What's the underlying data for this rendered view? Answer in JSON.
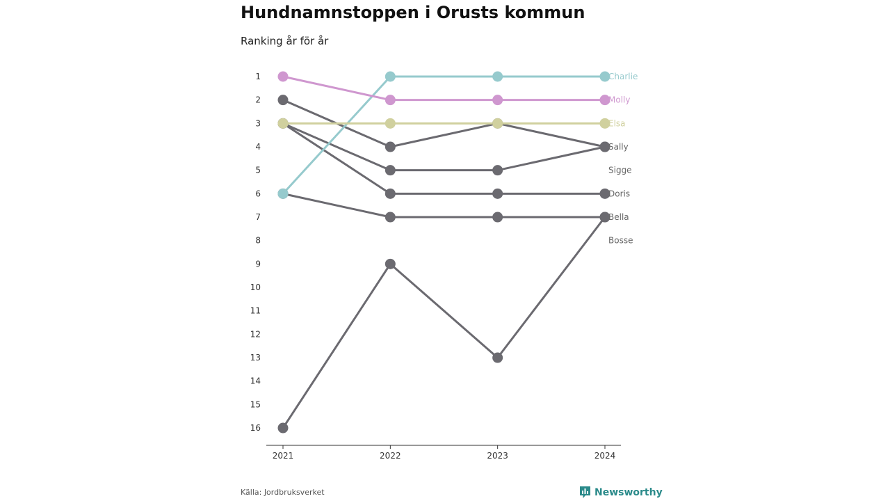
{
  "header": {
    "title": "Hundnamnstoppen i Orusts kommun",
    "subtitle": "Ranking år för år"
  },
  "footer": {
    "source": "Källa: Jordbruksverket",
    "brand": "Newsworthy",
    "brand_icon": "bar-chart-icon",
    "brand_color": "#2a8a8a"
  },
  "chart_data": {
    "type": "line",
    "title": "Hundnamnstoppen i Orusts kommun",
    "subtitle": "Ranking år för år",
    "xlabel": "",
    "ylabel": "",
    "x": [
      "2021",
      "2022",
      "2023",
      "2024"
    ],
    "ylim": [
      1,
      16
    ],
    "y_reversed": true,
    "y_ticks": [
      1,
      2,
      3,
      4,
      5,
      6,
      7,
      8,
      9,
      10,
      11,
      12,
      13,
      14,
      15,
      16
    ],
    "grid": false,
    "legend": "end-labels-right",
    "series": [
      {
        "name": "Charlie",
        "values": [
          6,
          1,
          1,
          1
        ],
        "color": "#96cacd",
        "highlight": true
      },
      {
        "name": "Molly",
        "values": [
          1,
          2,
          2,
          2
        ],
        "color": "#cf97cf",
        "highlight": true
      },
      {
        "name": "Elsa",
        "values": [
          3,
          3,
          3,
          3
        ],
        "color": "#d0d09e",
        "highlight": true
      },
      {
        "name": "Sally",
        "values": [
          2,
          4,
          3,
          4
        ],
        "color": "#6b6a70"
      },
      {
        "name": "Sigge",
        "values": [
          3,
          5,
          5,
          4
        ],
        "color": "#6b6a70"
      },
      {
        "name": "Doris",
        "values": [
          3,
          6,
          6,
          6
        ],
        "color": "#6b6a70"
      },
      {
        "name": "Bella",
        "values": [
          6,
          7,
          7,
          7
        ],
        "color": "#6b6a70"
      },
      {
        "name": "Bosse",
        "values": [
          16,
          9,
          13,
          7
        ],
        "color": "#6b6a70"
      }
    ],
    "end_label_ranks": {
      "Charlie": 1,
      "Molly": 2,
      "Elsa": 3,
      "Sally": 4,
      "Sigge": 5,
      "Doris": 6,
      "Bella": 7,
      "Bosse": 8
    }
  }
}
